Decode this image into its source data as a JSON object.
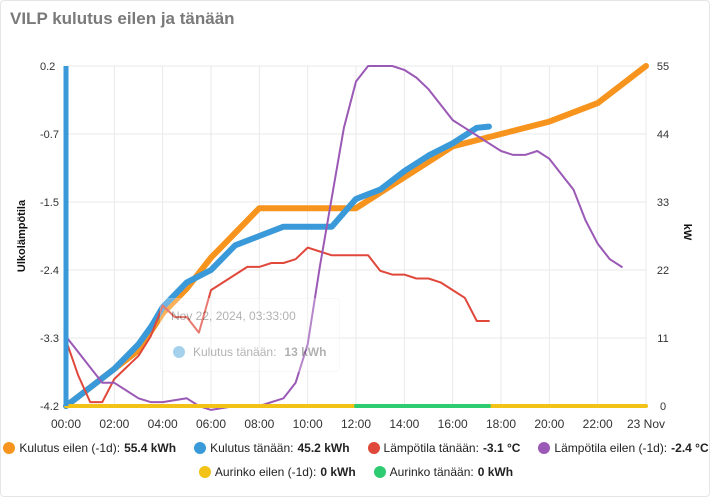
{
  "title": "VILP kulutus eilen ja tänään",
  "colors": {
    "orange": "#f7941d",
    "blue": "#3a9ad9",
    "red": "#e0483b",
    "purple": "#9b59b6",
    "yellow": "#f2c216",
    "green": "#2ecc71",
    "grid": "#e9e9e9",
    "axis": "#333333"
  },
  "tooltip": {
    "time": "Nov 22, 2024, 03:33:00",
    "series": "Kulutus tänään:",
    "value": "13 kWh"
  },
  "legend": [
    {
      "label": "Kulutus eilen (-1d):",
      "value": "55.4 kWh",
      "color": "#f7941d"
    },
    {
      "label": "Kulutus tänään:",
      "value": "45.2 kWh",
      "color": "#3a9ad9"
    },
    {
      "label": "Lämpötila tänään:",
      "value": "-3.1 °C",
      "color": "#e0483b"
    },
    {
      "label": "Lämpötila eilen (-1d):",
      "value": "-2.4 °C",
      "color": "#9b59b6"
    },
    {
      "label": "Aurinko eilen (-1d):",
      "value": "0 kWh",
      "color": "#f2c216"
    },
    {
      "label": "Aurinko tänään:",
      "value": "0 kWh",
      "color": "#2ecc71"
    }
  ],
  "chart_data": {
    "type": "line",
    "x_ticks": [
      "00:00",
      "02:00",
      "04:00",
      "06:00",
      "08:00",
      "10:00",
      "12:00",
      "14:00",
      "16:00",
      "18:00",
      "20:00",
      "22:00",
      "23 Nov"
    ],
    "x_range_hours": [
      0,
      24
    ],
    "left_axis": {
      "label": "Ulkolämpötila",
      "ticks": [
        "0.2",
        "-0.7",
        "-1.5",
        "-2.4",
        "-3.3",
        "-4.2"
      ],
      "range": [
        -4.2,
        0.2
      ]
    },
    "right_axis": {
      "label": "kW",
      "ticks": [
        "55",
        "44",
        "33",
        "22",
        "11",
        "0"
      ],
      "range": [
        0,
        55
      ]
    },
    "series": [
      {
        "name": "Kulutus eilen (-1d)",
        "axis": "right",
        "color": "#f7941d",
        "width": 6,
        "x": [
          0,
          1,
          2,
          3,
          4,
          5,
          6,
          6.5,
          7,
          7.5,
          8,
          10,
          12,
          14,
          16,
          18,
          20,
          22,
          24
        ],
        "y": [
          0,
          3,
          6,
          9,
          15,
          19,
          24,
          26,
          28,
          30,
          32,
          32,
          32,
          37,
          42,
          44,
          46,
          49,
          55
        ]
      },
      {
        "name": "Kulutus tänään",
        "axis": "right",
        "color": "#3a9ad9",
        "width": 6,
        "x": [
          0,
          1,
          2,
          3,
          3.55,
          4,
          5,
          6,
          7,
          8,
          9,
          10,
          11,
          12,
          13,
          14,
          15,
          16,
          17,
          17.5
        ],
        "y": [
          0,
          3,
          6,
          10,
          13,
          16,
          20,
          22,
          26,
          27.5,
          29,
          29,
          29,
          33.5,
          35,
          38,
          40.5,
          42.5,
          45,
          45.2
        ]
      },
      {
        "name": "Lämpötila tänään",
        "axis": "left",
        "color": "#e0483b",
        "width": 2,
        "x": [
          0,
          0.5,
          1,
          1.5,
          2,
          2.5,
          3,
          3.5,
          4,
          4.5,
          5,
          5.5,
          6,
          6.5,
          7,
          7.5,
          8,
          8.5,
          9,
          9.5,
          10,
          10.5,
          11,
          11.5,
          12,
          12.5,
          13,
          13.5,
          14,
          14.5,
          15,
          15.5,
          16,
          16.5,
          17,
          17.5
        ],
        "y": [
          -3.35,
          -3.8,
          -4.15,
          -4.15,
          -3.85,
          -3.7,
          -3.55,
          -3.3,
          -2.9,
          -3.05,
          -3.05,
          -3.25,
          -2.7,
          -2.6,
          -2.5,
          -2.4,
          -2.4,
          -2.35,
          -2.35,
          -2.3,
          -2.15,
          -2.2,
          -2.25,
          -2.25,
          -2.25,
          -2.25,
          -2.45,
          -2.5,
          -2.5,
          -2.55,
          -2.55,
          -2.6,
          -2.7,
          -2.8,
          -3.1,
          -3.1
        ]
      },
      {
        "name": "Lämpötila eilen (-1d)",
        "axis": "left",
        "color": "#9b59b6",
        "width": 2,
        "x": [
          0,
          0.5,
          1,
          1.5,
          2,
          3,
          3.5,
          4,
          5,
          5.5,
          6,
          7,
          8,
          9,
          9.5,
          10,
          10.5,
          11,
          11.5,
          12,
          12.5,
          13,
          13.5,
          14,
          14.5,
          15,
          15.5,
          16,
          16.5,
          17,
          17.5,
          18,
          18.5,
          19,
          19.5,
          20,
          20.5,
          21,
          21.5,
          22,
          22.5,
          23
        ],
        "y": [
          -3.3,
          -3.5,
          -3.7,
          -3.9,
          -3.9,
          -4.1,
          -4.15,
          -4.15,
          -4.1,
          -4.2,
          -4.25,
          -4.2,
          -4.2,
          -4.1,
          -3.9,
          -3.4,
          -2.4,
          -1.5,
          -0.6,
          0.0,
          0.2,
          0.2,
          0.2,
          0.15,
          0.05,
          -0.1,
          -0.3,
          -0.5,
          -0.6,
          -0.7,
          -0.8,
          -0.9,
          -0.95,
          -0.95,
          -0.9,
          -1.0,
          -1.2,
          -1.4,
          -1.8,
          -2.1,
          -2.3,
          -2.4
        ]
      },
      {
        "name": "Aurinko eilen (-1d)",
        "axis": "right",
        "color": "#f2c216",
        "width": 4,
        "x": [
          0,
          24
        ],
        "y": [
          0,
          0
        ]
      },
      {
        "name": "Aurinko tänään",
        "axis": "right",
        "color": "#2ecc71",
        "width": 4,
        "x": [
          12,
          17.5
        ],
        "y": [
          0,
          0
        ]
      }
    ]
  }
}
